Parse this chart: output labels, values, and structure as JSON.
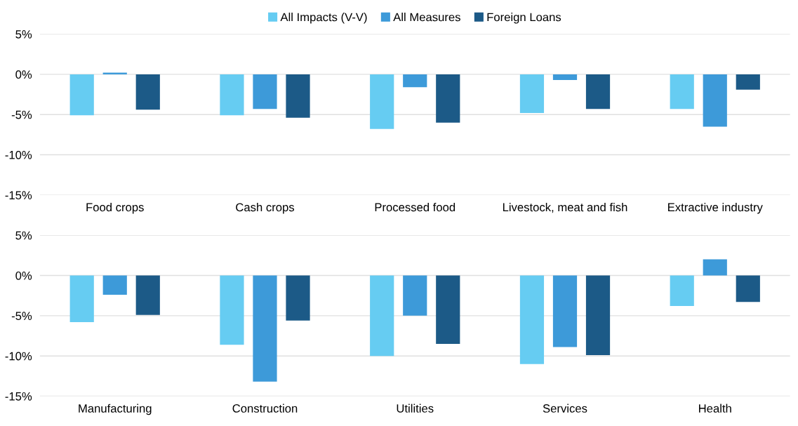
{
  "chart_data": [
    {
      "type": "bar",
      "categories": [
        "Food crops",
        "Cash crops",
        "Processed food",
        "Livestock, meat and fish",
        "Extractive industry"
      ],
      "series": [
        {
          "name": "All Impacts (V-V)",
          "color": "#66ccf2",
          "values": [
            -5.1,
            -5.1,
            -6.8,
            -4.8,
            -4.3
          ]
        },
        {
          "name": "All Measures",
          "color": "#3d9ad9",
          "values": [
            0.2,
            -4.3,
            -1.6,
            -0.7,
            -6.5
          ]
        },
        {
          "name": "Foreign Loans",
          "color": "#1c5a87",
          "values": [
            -4.4,
            -5.4,
            -6.0,
            -4.3,
            -1.9
          ]
        }
      ],
      "ylim": [
        -15,
        5
      ],
      "yticks": [
        {
          "value": -15,
          "label": "-15%"
        },
        {
          "value": -10,
          "label": "-10%"
        },
        {
          "value": -5,
          "label": "-5%"
        },
        {
          "value": 0,
          "label": "0%"
        },
        {
          "value": 5,
          "label": "5%"
        }
      ],
      "grid": "y",
      "legend": "top"
    },
    {
      "type": "bar",
      "categories": [
        "Manufacturing",
        "Construction",
        "Utilities",
        "Services",
        "Health"
      ],
      "series": [
        {
          "color": "#66ccf2",
          "values": [
            -5.8,
            -8.6,
            -10.0,
            -11.0,
            -3.8
          ]
        },
        {
          "color": "#3d9ad9",
          "values": [
            -2.4,
            -13.2,
            -5.0,
            -8.9,
            2.0
          ]
        },
        {
          "color": "#1c5a87",
          "values": [
            -4.9,
            -5.6,
            -8.5,
            -9.9,
            -3.3
          ]
        }
      ],
      "ylim": [
        -15,
        5
      ],
      "yticks": [
        {
          "value": -15,
          "label": "-15%"
        },
        {
          "value": -10,
          "label": "-10%"
        },
        {
          "value": -5,
          "label": "-5%"
        },
        {
          "value": 0,
          "label": "0%"
        },
        {
          "value": 5,
          "label": "5%"
        }
      ],
      "grid": "y"
    }
  ]
}
